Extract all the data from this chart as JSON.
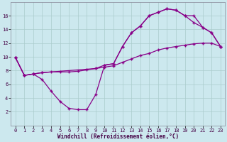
{
  "xlabel": "Windchill (Refroidissement éolien,°C)",
  "bg_color": "#cce8ee",
  "line_color": "#880088",
  "xlim": [
    -0.5,
    23.5
  ],
  "ylim": [
    0,
    18
  ],
  "xticks": [
    0,
    1,
    2,
    3,
    4,
    5,
    6,
    7,
    8,
    9,
    10,
    11,
    12,
    13,
    14,
    15,
    16,
    17,
    18,
    19,
    20,
    21,
    22,
    23
  ],
  "yticks": [
    2,
    4,
    6,
    8,
    10,
    12,
    14,
    16
  ],
  "grid_color": "#aacccc",
  "tick_font": 5,
  "xlabel_font": 5.5,
  "line1_x": [
    0,
    1,
    2,
    3,
    4,
    5,
    6,
    7,
    8,
    9,
    10,
    11,
    12,
    13,
    14,
    15,
    16,
    17,
    18,
    19,
    20,
    21,
    22,
    23
  ],
  "line1_y": [
    9.9,
    7.3,
    7.5,
    6.7,
    5.0,
    3.5,
    2.5,
    2.3,
    2.3,
    4.5,
    8.8,
    9.0,
    11.5,
    13.5,
    14.5,
    16.0,
    16.5,
    17.0,
    16.8,
    16.0,
    15.0,
    14.3,
    13.5,
    11.5
  ],
  "line2_x": [
    0,
    1,
    2,
    3,
    4,
    5,
    6,
    7,
    8,
    9,
    10,
    11,
    12,
    13,
    14,
    15,
    16,
    17,
    18,
    19,
    20,
    21,
    22,
    23
  ],
  "line2_y": [
    9.9,
    7.3,
    7.5,
    7.7,
    7.8,
    7.8,
    7.8,
    7.9,
    8.1,
    8.3,
    8.5,
    8.7,
    9.2,
    9.7,
    10.2,
    10.5,
    11.0,
    11.3,
    11.5,
    11.7,
    11.9,
    12.0,
    12.0,
    11.5
  ],
  "line3_x": [
    0,
    1,
    2,
    3,
    9,
    10,
    11,
    12,
    13,
    14,
    15,
    16,
    17,
    18,
    19,
    20,
    21,
    22,
    23
  ],
  "line3_y": [
    9.9,
    7.3,
    7.5,
    7.7,
    8.3,
    8.8,
    9.0,
    11.5,
    13.5,
    14.5,
    16.0,
    16.5,
    17.0,
    16.8,
    16.0,
    16.0,
    14.3,
    13.5,
    11.5
  ]
}
